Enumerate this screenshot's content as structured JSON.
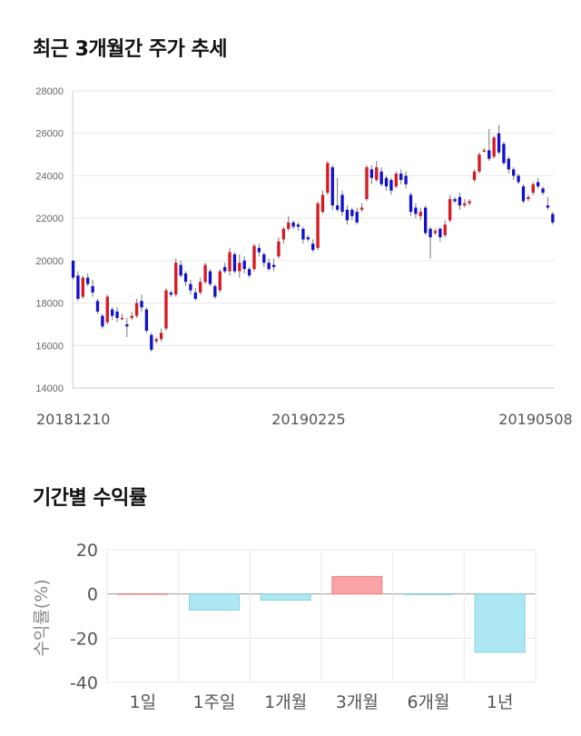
{
  "titles": {
    "price_trend": "최근 3개월간 주가 추세",
    "period_returns": "기간별 수익률"
  },
  "chart_data": [
    {
      "type": "candlestick",
      "title": "최근 3개월간 주가 추세",
      "ylim": [
        14000,
        28000
      ],
      "yticks": [
        14000,
        16000,
        18000,
        20000,
        22000,
        24000,
        26000,
        28000
      ],
      "xtick_labels": [
        "20181210",
        "20190225",
        "20190508"
      ],
      "grid": true,
      "colors": {
        "up": "#d71920",
        "down": "#1111cc",
        "wick": "#777777"
      },
      "candles": [
        [
          20000,
          19200,
          20000,
          19100
        ],
        [
          19300,
          18200,
          19500,
          18100
        ],
        [
          18300,
          19200,
          19300,
          18200
        ],
        [
          19200,
          18900,
          19400,
          18800
        ],
        [
          18800,
          18500,
          19100,
          18300
        ],
        [
          18100,
          17600,
          18200,
          17500
        ],
        [
          17400,
          16900,
          17500,
          16800
        ],
        [
          17100,
          18300,
          18400,
          17000
        ],
        [
          17700,
          17400,
          17800,
          17200
        ],
        [
          17600,
          17300,
          17800,
          17100
        ],
        [
          17300,
          17300,
          17500,
          17200
        ],
        [
          17000,
          16900,
          17300,
          16400
        ],
        [
          17300,
          17400,
          17600,
          17200
        ],
        [
          17400,
          18000,
          18200,
          17300
        ],
        [
          18100,
          17800,
          18400,
          17600
        ],
        [
          17700,
          16700,
          17800,
          16600
        ],
        [
          16500,
          15800,
          16600,
          15700
        ],
        [
          16200,
          16300,
          16400,
          16100
        ],
        [
          16300,
          16600,
          16800,
          16200
        ],
        [
          16800,
          18600,
          18700,
          16700
        ],
        [
          18500,
          18400,
          18600,
          18300
        ],
        [
          18400,
          19900,
          20100,
          18300
        ],
        [
          19800,
          19300,
          20000,
          19200
        ],
        [
          19400,
          19000,
          19500,
          18800
        ],
        [
          18900,
          18600,
          19100,
          18400
        ],
        [
          18500,
          18200,
          18700,
          18100
        ],
        [
          18500,
          19000,
          19200,
          18400
        ],
        [
          19000,
          19800,
          19900,
          18900
        ],
        [
          19500,
          18900,
          19600,
          18800
        ],
        [
          18800,
          18300,
          18900,
          18200
        ],
        [
          18600,
          19500,
          19600,
          18500
        ],
        [
          19700,
          19500,
          19900,
          19400
        ],
        [
          19500,
          20400,
          20600,
          19300
        ],
        [
          20300,
          19500,
          20400,
          19400
        ],
        [
          19500,
          19900,
          20300,
          19200
        ],
        [
          20000,
          19600,
          20200,
          19400
        ],
        [
          19600,
          19300,
          19700,
          19200
        ],
        [
          19600,
          20700,
          20800,
          19500
        ],
        [
          20600,
          20400,
          20800,
          20200
        ],
        [
          20300,
          19900,
          20400,
          19700
        ],
        [
          19900,
          19600,
          20100,
          19500
        ],
        [
          19800,
          19700,
          20100,
          19500
        ],
        [
          20200,
          20900,
          21100,
          20100
        ],
        [
          21000,
          21500,
          21600,
          20800
        ],
        [
          21500,
          21800,
          22100,
          21400
        ],
        [
          21800,
          21600,
          21900,
          21500
        ],
        [
          21700,
          21600,
          21800,
          21400
        ],
        [
          21500,
          21000,
          21600,
          20800
        ],
        [
          21100,
          21000,
          21200,
          20900
        ],
        [
          20800,
          20500,
          21000,
          20400
        ],
        [
          20600,
          22700,
          22800,
          20500
        ],
        [
          22300,
          23100,
          23300,
          22200
        ],
        [
          23200,
          24600,
          24700,
          23100
        ],
        [
          24400,
          22600,
          24500,
          22400
        ],
        [
          22600,
          22400,
          23900,
          22300
        ],
        [
          23100,
          22300,
          23300,
          22100
        ],
        [
          22400,
          21900,
          22600,
          21700
        ],
        [
          22400,
          22100,
          22500,
          21900
        ],
        [
          22300,
          21800,
          22500,
          21700
        ],
        [
          22400,
          22500,
          22700,
          22300
        ],
        [
          22900,
          24400,
          24500,
          22800
        ],
        [
          24300,
          23900,
          24500,
          23600
        ],
        [
          23800,
          24400,
          24700,
          23700
        ],
        [
          24200,
          23600,
          24400,
          23500
        ],
        [
          23900,
          23500,
          24000,
          23300
        ],
        [
          23800,
          23300,
          23900,
          23100
        ],
        [
          23500,
          24100,
          24200,
          23400
        ],
        [
          24100,
          23800,
          24300,
          23600
        ],
        [
          24000,
          23600,
          24200,
          23400
        ],
        [
          23100,
          22300,
          23200,
          22100
        ],
        [
          22500,
          22200,
          22700,
          22000
        ],
        [
          22100,
          22300,
          22500,
          21900
        ],
        [
          22500,
          21300,
          22600,
          21200
        ],
        [
          21500,
          21100,
          21600,
          20100
        ],
        [
          21300,
          21400,
          21500,
          21200
        ],
        [
          21500,
          21100,
          21600,
          20900
        ],
        [
          21200,
          21700,
          21900,
          21100
        ],
        [
          21900,
          22900,
          23100,
          21800
        ],
        [
          22900,
          22800,
          23000,
          22700
        ],
        [
          23000,
          22600,
          23200,
          22400
        ],
        [
          22600,
          22700,
          22900,
          22500
        ],
        [
          22700,
          22800,
          22900,
          22600
        ],
        [
          23800,
          24200,
          24300,
          23700
        ],
        [
          24200,
          25000,
          25100,
          24100
        ],
        [
          25200,
          25200,
          25300,
          25100
        ],
        [
          25200,
          24800,
          26200,
          24700
        ],
        [
          24900,
          25800,
          25900,
          24800
        ],
        [
          26000,
          25100,
          26400,
          25000
        ],
        [
          25500,
          24600,
          25600,
          24500
        ],
        [
          24800,
          24300,
          24900,
          24100
        ],
        [
          24300,
          24000,
          24400,
          23800
        ],
        [
          24000,
          23700,
          24100,
          23600
        ],
        [
          23500,
          22800,
          23600,
          22700
        ],
        [
          22900,
          23000,
          23100,
          22800
        ],
        [
          23200,
          23600,
          23700,
          23100
        ],
        [
          23700,
          23500,
          23900,
          23400
        ],
        [
          23400,
          23200,
          23500,
          23100
        ],
        [
          22600,
          22500,
          23000,
          22400
        ],
        [
          22200,
          21800,
          22300,
          21700
        ]
      ]
    },
    {
      "type": "bar",
      "categories": [
        "1일",
        "1주일",
        "1개월",
        "3개월",
        "6개월",
        "1년"
      ],
      "values": [
        0.0,
        -7.3,
        -2.8,
        7.9,
        -0.3,
        -26.4
      ],
      "ylabel": "수익률(%)",
      "ylim": [
        -40,
        20
      ],
      "yticks": [
        -40,
        -20,
        0,
        20
      ],
      "colors": {
        "positive": "#f9a3a7",
        "negative": "#ade8f2",
        "positive_edge": "#f08086",
        "negative_edge": "#87d2e0"
      }
    }
  ]
}
